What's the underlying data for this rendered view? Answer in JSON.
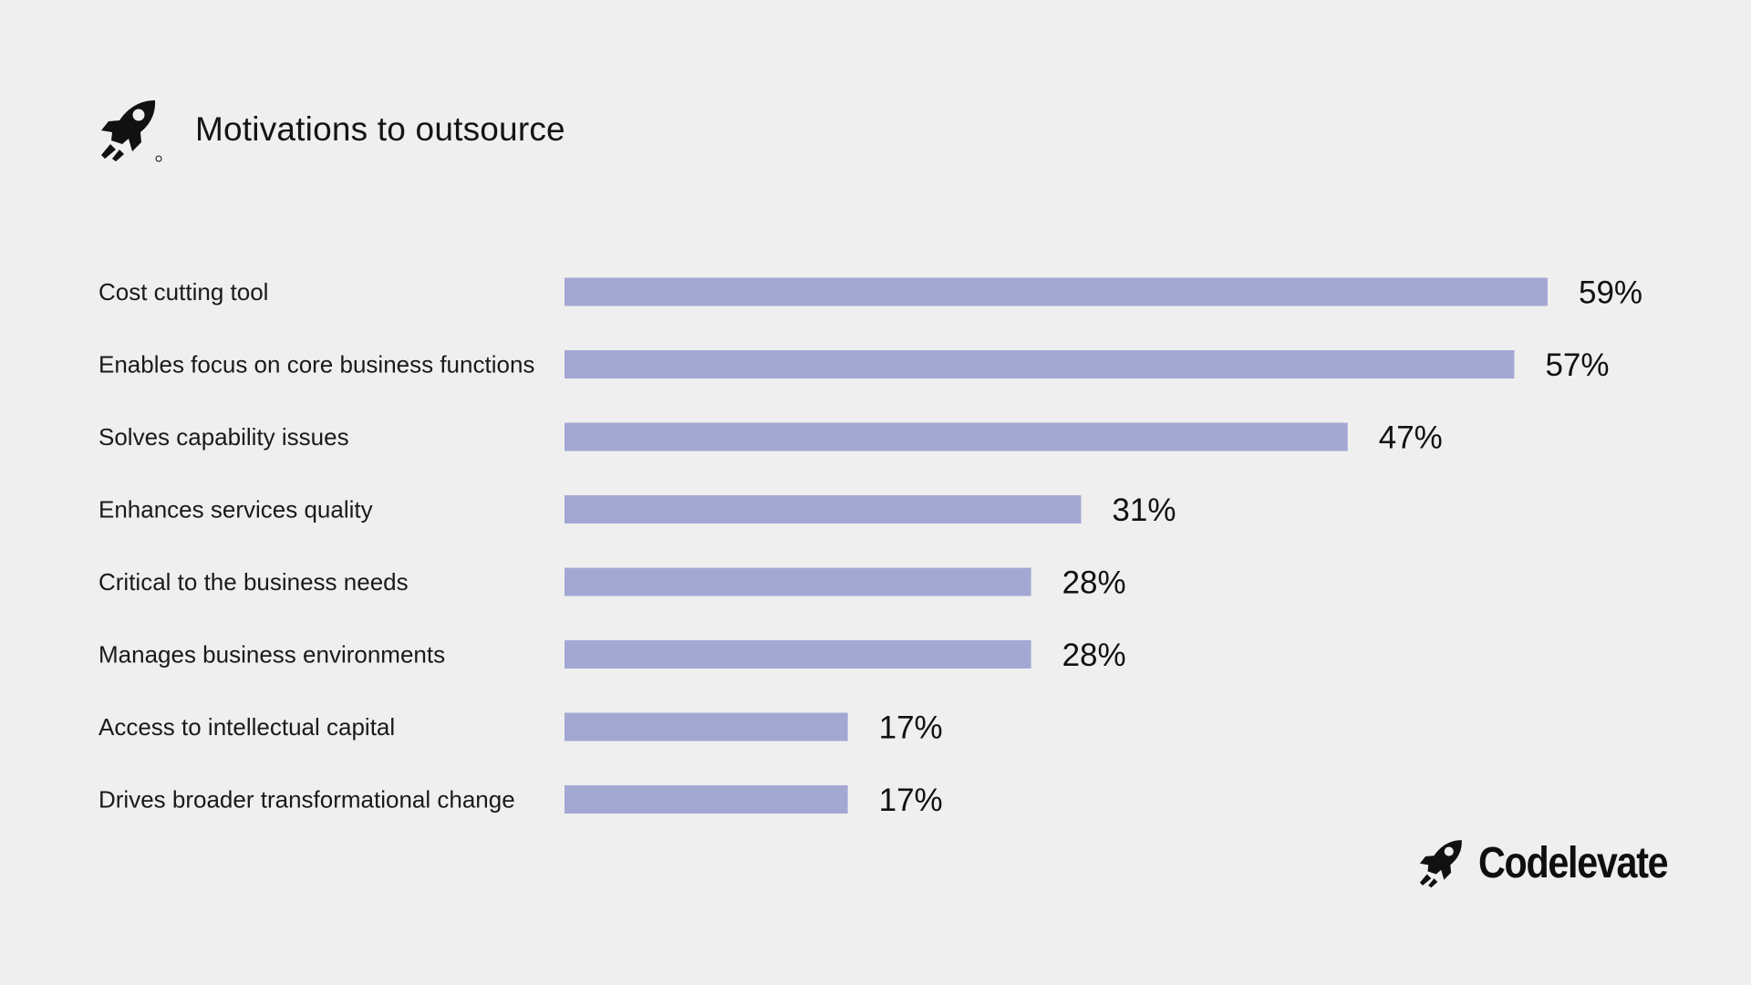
{
  "header": {
    "logo_icon": "rocket-logo-icon",
    "title": "Motivations to outsource"
  },
  "brand": {
    "logo_icon": "rocket-logo-icon",
    "name": "Codelevate"
  },
  "colors": {
    "background": "#efefef",
    "bar": "#a3a8d3",
    "text": "#151515"
  },
  "chart_data": {
    "type": "bar",
    "orientation": "horizontal",
    "title": "Motivations to outsource",
    "xlabel": "",
    "ylabel": "",
    "grid": false,
    "xlim": [
      0,
      59
    ],
    "categories": [
      "Cost cutting tool",
      "Enables focus on core business functions",
      "Solves capability issues",
      "Enhances services quality",
      "Critical to the business needs",
      "Manages business environments",
      "Access to intellectual capital",
      "Drives broader transformational change"
    ],
    "values": [
      59,
      57,
      47,
      31,
      28,
      28,
      17,
      17
    ],
    "value_labels": [
      "59%",
      "57%",
      "47%",
      "31%",
      "28%",
      "28%",
      "17%",
      "17%"
    ],
    "bar_color": "#a3a8d3"
  }
}
